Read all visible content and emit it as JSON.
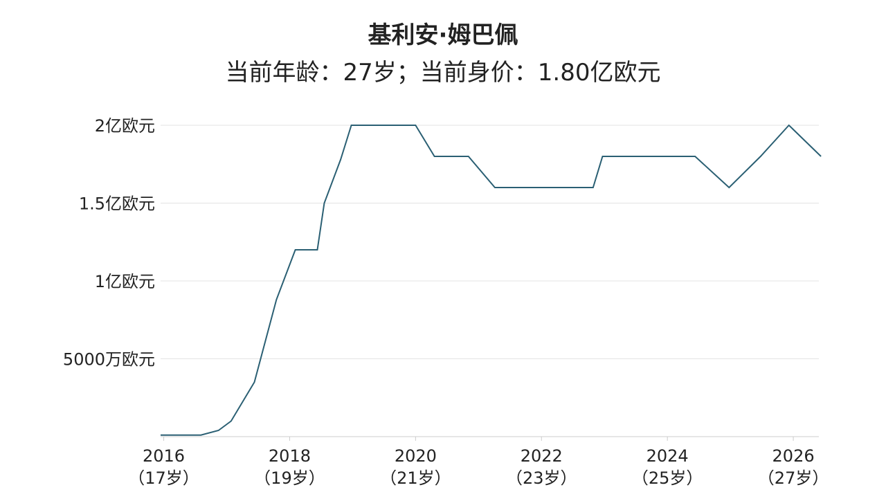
{
  "chart_data": {
    "type": "line",
    "title": "基利安·姆巴佩",
    "subtitle": "当前年龄：27岁；当前身价：1.80亿欧元",
    "x": [
      2015.95,
      2016.59,
      2016.87,
      2017.07,
      2017.44,
      2017.79,
      2018.09,
      2018.44,
      2018.55,
      2018.81,
      2018.98,
      2020.0,
      2020.3,
      2020.84,
      2021.26,
      2022.82,
      2022.97,
      2024.44,
      2024.98,
      2025.48,
      2025.93,
      2026.44
    ],
    "series": [
      {
        "name": "身价",
        "color": "#2a5f73",
        "values": [
          0.01,
          0.01,
          0.04,
          0.1,
          0.35,
          0.88,
          1.2,
          1.2,
          1.5,
          1.78,
          2.0,
          2.0,
          1.8,
          1.8,
          1.6,
          1.6,
          1.8,
          1.8,
          1.6,
          1.8,
          2.0,
          1.8
        ]
      }
    ],
    "xlim": [
      2015.95,
      2026.45
    ],
    "xticks": [
      2016,
      2018,
      2020,
      2022,
      2024,
      2026
    ],
    "xtick_ages": [
      "（17岁）",
      "（19岁）",
      "（21岁）",
      "（23岁）",
      "（25岁）",
      "（27岁）"
    ],
    "ylim": [
      0,
      2.1
    ],
    "yticks": [
      {
        "value": 0.5,
        "label": "5000万欧元"
      },
      {
        "value": 1,
        "label": "1亿欧元"
      },
      {
        "value": 1.5,
        "label": "1.5亿欧元"
      },
      {
        "value": 2,
        "label": "2亿欧元"
      }
    ],
    "grid": true
  }
}
